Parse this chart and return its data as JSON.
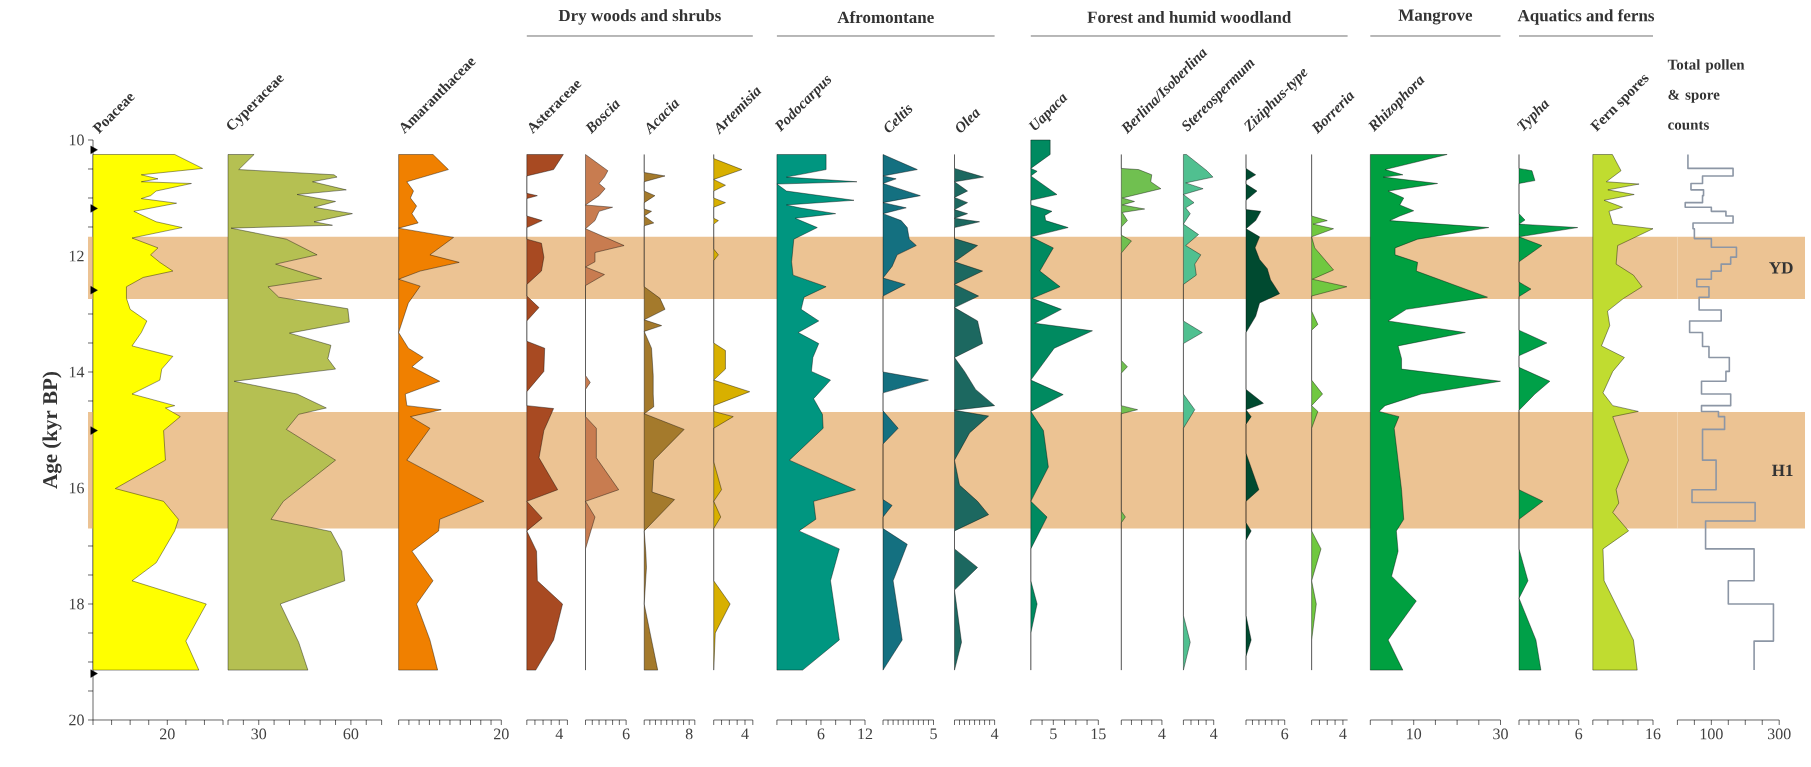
{
  "chart_data": [
    {
      "type": "area",
      "orientation": "horizontal",
      "title": "Poaceae",
      "ylabel": "Age (kyr BP)",
      "ylim": [
        20,
        10
      ],
      "yticks": [
        10,
        {
          "value": 10.5,
          "label": null
        },
        {
          "value": 11,
          "label": null
        },
        {
          "value": 11.5,
          "label": null
        },
        12,
        {
          "value": 12.5,
          "label": null
        },
        {
          "value": 13,
          "label": null
        },
        {
          "value": 13.5,
          "label": null
        },
        14,
        {
          "value": 14.5,
          "label": null
        },
        {
          "value": 15,
          "label": null
        },
        {
          "value": 15.5,
          "label": null
        },
        16,
        {
          "value": 16.5,
          "label": null
        },
        {
          "value": 17,
          "label": null
        },
        {
          "value": 17.5,
          "label": null
        },
        18,
        {
          "value": 18.5,
          "label": null
        },
        {
          "value": 19,
          "label": null
        },
        {
          "value": 19.5,
          "label": null
        },
        20
      ],
      "xlim": [
        0,
        35
      ],
      "xticks": [
        {
          "value": 0,
          "label": null
        },
        {
          "value": 5,
          "label": null
        },
        {
          "value": 10,
          "label": null
        },
        {
          "value": 15,
          "label": null
        },
        20,
        {
          "value": 25,
          "label": null
        },
        {
          "value": 30,
          "label": null
        },
        {
          "value": 35,
          "label": null
        }
      ],
      "series": [
        {
          "type": "area",
          "color": "#ffff00",
          "x": [
            10.25,
            10.49,
            10.6,
            10.67,
            10.72,
            10.75,
            10.88,
            10.96,
            11.01,
            11.09,
            11.23,
            11.41,
            11.51,
            11.69,
            11.86,
            11.98,
            12.11,
            12.26,
            12.37,
            12.53,
            12.73,
            12.92,
            13.12,
            13.32,
            13.55,
            13.73,
            13.95,
            14.14,
            14.38,
            14.58,
            14.62,
            14.77,
            15.01,
            15.52,
            16.01,
            16.23,
            16.54,
            16.74,
            17.29,
            17.6,
            18.0,
            18.64,
            19.14
          ],
          "values": [
            22,
            29.5,
            13,
            17.5,
            13,
            26.5,
            17,
            15.5,
            13,
            22.5,
            11,
            17,
            24,
            10.5,
            17.5,
            15.5,
            18,
            21.5,
            13.5,
            9,
            9,
            10,
            14.5,
            13,
            10.5,
            21.5,
            18.5,
            18,
            10.5,
            22,
            19.5,
            23.5,
            19,
            19.5,
            6,
            19,
            23,
            22,
            17,
            10.5,
            30.5,
            25,
            28.5
          ]
        },
        {
          "type": "scatter",
          "marker": "triangle",
          "color": "#000000",
          "x": [
            10.17,
            11.18,
            12.59,
            15.01,
            19.2
          ],
          "values": [
            0,
            0,
            0,
            0,
            0
          ]
        }
      ],
      "bands": [
        {
          "axis": "y",
          "from": 11.67,
          "to": 12.74,
          "color": "#ecc393"
        },
        {
          "axis": "y",
          "from": 14.69,
          "to": 16.7,
          "color": "#ecc393"
        }
      ]
    },
    {
      "type": "area",
      "orientation": "horizontal",
      "title": "Cyperaceae",
      "color": "#b5c052",
      "ylim": [
        20,
        10
      ],
      "tick_labels": "x",
      "xlim": [
        20,
        70
      ],
      "xticks": [
        {
          "value": 20,
          "label": null
        },
        {
          "value": 25,
          "label": null
        },
        30,
        {
          "value": 35,
          "label": null
        },
        {
          "value": 40,
          "label": null
        },
        {
          "value": 45,
          "label": null
        },
        {
          "value": 50,
          "label": null
        },
        {
          "value": 55,
          "label": null
        },
        60,
        {
          "value": 65,
          "label": null
        },
        {
          "value": 70,
          "label": null
        }
      ],
      "x": [
        10.25,
        10.51,
        10.6,
        10.64,
        10.72,
        10.86,
        10.94,
        11.06,
        11.16,
        11.27,
        11.41,
        11.47,
        11.52,
        11.71,
        11.98,
        12.14,
        12.39,
        12.53,
        12.71,
        12.91,
        13.14,
        13.33,
        13.54,
        13.77,
        13.95,
        14.16,
        14.38,
        14.62,
        14.73,
        14.99,
        15.52,
        16.23,
        16.54,
        16.75,
        17.09,
        17.6,
        18.0,
        18.66,
        19.14
      ],
      "values": [
        28.5,
        23.5,
        54.5,
        55.5,
        47.5,
        58.5,
        42.5,
        55,
        48,
        60.5,
        48,
        54,
        21,
        39,
        49,
        35.5,
        50.5,
        33,
        36.5,
        59,
        59.5,
        40,
        53.5,
        52.5,
        55,
        22,
        42.5,
        52,
        43,
        39,
        55,
        38,
        34,
        53.5,
        57,
        58,
        37,
        43,
        46
      ],
      "bands": [
        {
          "axis": "y",
          "from": 11.67,
          "to": 12.74,
          "color": "#ecc393"
        },
        {
          "axis": "y",
          "from": 14.69,
          "to": 16.7,
          "color": "#ecc393"
        }
      ]
    },
    {
      "type": "area",
      "orientation": "horizontal",
      "title": "Amaranthaceae",
      "color": "#f08000",
      "ylim": [
        20,
        10
      ],
      "tick_labels": "x",
      "xlim": [
        0,
        20
      ],
      "xticks": [
        {
          "value": 0,
          "label": null
        },
        {
          "value": 2,
          "label": null
        },
        {
          "value": 4,
          "label": null
        },
        {
          "value": 6,
          "label": null
        },
        {
          "value": 8,
          "label": null
        },
        {
          "value": 10,
          "label": null
        },
        {
          "value": 12,
          "label": null
        },
        {
          "value": 14,
          "label": null
        },
        {
          "value": 16,
          "label": null
        },
        {
          "value": 18,
          "label": null
        },
        20
      ],
      "x": [
        10.25,
        10.51,
        10.72,
        10.88,
        11.0,
        11.14,
        11.27,
        11.43,
        11.52,
        11.68,
        11.98,
        12.11,
        12.26,
        12.4,
        12.52,
        12.81,
        13.32,
        13.59,
        13.75,
        13.91,
        14.16,
        14.38,
        14.58,
        14.65,
        14.77,
        14.97,
        15.52,
        16.23,
        16.54,
        16.74,
        17.09,
        17.6,
        18.0,
        18.62,
        19.14
      ],
      "values": [
        6.7,
        9.7,
        1.6,
        2.9,
        2.3,
        3.5,
        2.6,
        3.8,
        0,
        10.7,
        6.1,
        11.8,
        4.2,
        0,
        4.2,
        1.9,
        0,
        1.9,
        4.8,
        2.6,
        8,
        1.3,
        1.6,
        8.3,
        2.3,
        6.1,
        1.6,
        16.6,
        8,
        7.8,
        2.6,
        6.7,
        3.5,
        6.1,
        7.6
      ],
      "bands": [
        {
          "axis": "y",
          "from": 11.67,
          "to": 12.74,
          "color": "#ecc393"
        },
        {
          "axis": "y",
          "from": 14.69,
          "to": 16.7,
          "color": "#ecc393"
        }
      ]
    },
    {
      "type": "area",
      "orientation": "horizontal",
      "title": "Asteraceae",
      "color": "#a84a22",
      "ylim": [
        20,
        10
      ],
      "tick_labels": "x",
      "xlim": [
        0,
        5
      ],
      "annotations": [
        "Dry woods and shrubs"
      ],
      "xticks": [
        {
          "value": 0,
          "label": null
        },
        {
          "value": 1,
          "label": null
        },
        {
          "value": 2,
          "label": null
        },
        {
          "value": 3,
          "label": null
        },
        4,
        {
          "value": 5,
          "label": null
        }
      ],
      "x": [
        10.25,
        10.51,
        10.62,
        10.92,
        10.96,
        11.01,
        11.31,
        11.39,
        11.51,
        11.71,
        11.78,
        12.02,
        12.26,
        12.49,
        12.69,
        12.89,
        13.12,
        13.47,
        13.59,
        13.99,
        14.34,
        14.58,
        14.63,
        15.01,
        15.48,
        16.03,
        16.23,
        16.52,
        16.74,
        17.09,
        17.6,
        18.0,
        18.62,
        19.14
      ],
      "values": [
        4.5,
        3.3,
        0,
        0,
        1.3,
        0,
        0,
        1.9,
        0,
        0,
        1.8,
        2.1,
        1.8,
        0,
        0,
        1.5,
        0,
        0,
        2.2,
        2.1,
        0,
        0,
        3.3,
        2.1,
        1.5,
        3.8,
        0,
        1.9,
        0,
        1.2,
        1.3,
        4.4,
        3.3,
        1.1
      ],
      "bands": [
        {
          "axis": "y",
          "from": 11.67,
          "to": 12.74,
          "color": "#ecc393"
        },
        {
          "axis": "y",
          "from": 14.69,
          "to": 16.7,
          "color": "#ecc393"
        }
      ]
    },
    {
      "type": "area",
      "orientation": "horizontal",
      "title": "Boscia",
      "color": "#c87c50",
      "ylim": [
        20,
        10
      ],
      "tick_labels": "x",
      "xlim": [
        0,
        6
      ],
      "xticks": [
        {
          "value": 0,
          "label": null
        },
        {
          "value": 1,
          "label": null
        },
        {
          "value": 2,
          "label": null
        },
        {
          "value": 3,
          "label": null
        },
        {
          "value": 4,
          "label": null
        },
        {
          "value": 5,
          "label": null
        },
        6
      ],
      "x": [
        10.25,
        10.53,
        10.64,
        10.75,
        10.84,
        10.96,
        11.12,
        11.16,
        11.23,
        11.39,
        11.53,
        11.82,
        11.94,
        12.1,
        12.19,
        12.32,
        12.51,
        14.06,
        14.18,
        14.3,
        14.77,
        14.97,
        15.48,
        16.03,
        16.23,
        16.5,
        17.05,
        19.14
      ],
      "values": [
        0,
        3.3,
        2.8,
        2,
        2.9,
        2,
        0,
        4,
        2,
        1.4,
        0,
        5.7,
        1.4,
        1.4,
        0,
        2.8,
        0,
        0,
        0.7,
        0,
        0,
        1.6,
        1.6,
        4.9,
        0,
        1.4,
        0,
        0
      ],
      "bands": [
        {
          "axis": "y",
          "from": 11.67,
          "to": 12.74,
          "color": "#ecc393"
        },
        {
          "axis": "y",
          "from": 14.69,
          "to": 16.7,
          "color": "#ecc393"
        }
      ]
    },
    {
      "type": "area",
      "orientation": "horizontal",
      "title": "Acacia",
      "color": "#a47a2c",
      "ylim": [
        20,
        10
      ],
      "tick_labels": "x",
      "xlim": [
        0,
        9
      ],
      "xticks": [
        {
          "value": 0,
          "label": null
        },
        {
          "value": 1,
          "label": null
        },
        {
          "value": 2,
          "label": null
        },
        {
          "value": 3,
          "label": null
        },
        {
          "value": 4,
          "label": null
        },
        {
          "value": 5,
          "label": null
        },
        {
          "value": 6,
          "label": null
        },
        {
          "value": 7,
          "label": null
        },
        8,
        {
          "value": 9,
          "label": null
        }
      ],
      "x": [
        10.25,
        10.56,
        10.62,
        10.72,
        10.88,
        10.96,
        11.08,
        11.19,
        11.23,
        11.31,
        11.43,
        11.48,
        12.53,
        12.73,
        12.92,
        13.1,
        13.2,
        13.3,
        13.59,
        14.06,
        14.38,
        14.6,
        14.72,
        14.99,
        15.52,
        16.07,
        16.2,
        16.74,
        17.13,
        17.37,
        18.0,
        18.62,
        19.14
      ],
      "values": [
        0,
        0,
        3.7,
        0,
        0,
        1.9,
        0,
        0,
        1.3,
        0,
        1.7,
        0,
        0,
        2.8,
        3.7,
        0,
        3.1,
        0,
        1.3,
        1.6,
        1.6,
        1.7,
        0,
        7.1,
        1.7,
        1.4,
        5.4,
        0,
        0.3,
        0.4,
        0,
        1.3,
        2.4
      ],
      "bands": [
        {
          "axis": "y",
          "from": 11.67,
          "to": 12.74,
          "color": "#ecc393"
        },
        {
          "axis": "y",
          "from": 14.69,
          "to": 16.7,
          "color": "#ecc393"
        }
      ]
    },
    {
      "type": "area",
      "orientation": "horizontal",
      "title": "Artemisia",
      "color": "#d8b000",
      "ylim": [
        20,
        10
      ],
      "tick_labels": "x",
      "xlim": [
        0,
        5
      ],
      "xticks": [
        {
          "value": 0,
          "label": null
        },
        {
          "value": 1,
          "label": null
        },
        {
          "value": 2,
          "label": null
        },
        {
          "value": 3,
          "label": null
        },
        4,
        {
          "value": 5,
          "label": null
        }
      ],
      "x": [
        10.25,
        10.32,
        10.51,
        10.68,
        10.78,
        10.88,
        11.0,
        11.08,
        11.16,
        11.35,
        11.39,
        11.45,
        11.88,
        11.98,
        12.08,
        13.5,
        13.63,
        13.95,
        14.14,
        14.34,
        14.58,
        14.68,
        14.77,
        14.97,
        15.55,
        16.03,
        16.23,
        16.5,
        16.7,
        17.6,
        18.0,
        18.5,
        19.14
      ],
      "values": [
        0,
        0,
        3.6,
        0,
        1.5,
        0,
        0,
        1.5,
        0,
        0,
        0.6,
        0,
        0,
        0.6,
        0,
        0,
        1.5,
        1.5,
        0,
        4.6,
        0,
        0,
        2.5,
        0,
        0,
        1,
        0,
        0.9,
        0,
        0,
        2.1,
        0.2,
        0
      ],
      "bands": [
        {
          "axis": "y",
          "from": 11.67,
          "to": 12.74,
          "color": "#ecc393"
        },
        {
          "axis": "y",
          "from": 14.69,
          "to": 16.7,
          "color": "#ecc393"
        }
      ]
    },
    {
      "type": "area",
      "orientation": "horizontal",
      "title": "Podocarpus",
      "color": "#009680",
      "ylim": [
        20,
        10
      ],
      "tick_labels": "x",
      "xlim": [
        0,
        12
      ],
      "annotations": [
        "Afromontane"
      ],
      "xticks": [
        {
          "value": 0,
          "label": null
        },
        {
          "value": 2,
          "label": null
        },
        {
          "value": 4,
          "label": null
        },
        6,
        {
          "value": 8,
          "label": null
        },
        {
          "value": 10,
          "label": null
        },
        12
      ],
      "x": [
        10.25,
        10.51,
        10.64,
        10.72,
        10.76,
        10.88,
        11.04,
        11.12,
        11.17,
        11.27,
        11.35,
        11.51,
        11.71,
        12.1,
        12.33,
        12.53,
        12.71,
        12.92,
        13.12,
        13.32,
        13.51,
        13.75,
        13.99,
        14.14,
        14.46,
        14.73,
        14.97,
        15.52,
        16.03,
        16.23,
        16.54,
        16.74,
        17.05,
        17.6,
        18.62,
        19.14
      ],
      "values": [
        6.7,
        6.7,
        1.3,
        10.9,
        0,
        1.3,
        10.5,
        1.3,
        3.1,
        8,
        2.5,
        5.5,
        2.3,
        2,
        2.2,
        6.7,
        3.7,
        3.3,
        5.7,
        2.9,
        5.7,
        4.9,
        4.7,
        7.3,
        5,
        6.2,
        6.3,
        1.7,
        10.7,
        5,
        5.3,
        3,
        8.5,
        7.3,
        8.5,
        3.5
      ],
      "bands": [
        {
          "axis": "y",
          "from": 11.67,
          "to": 12.74,
          "color": "#ecc393"
        },
        {
          "axis": "y",
          "from": 14.69,
          "to": 16.7,
          "color": "#ecc393"
        }
      ]
    },
    {
      "type": "area",
      "orientation": "horizontal",
      "title": "Celtis",
      "color": "#147080",
      "ylim": [
        20,
        10
      ],
      "tick_labels": "x",
      "xlim": [
        0,
        5
      ],
      "xticks": [
        {
          "value": 0,
          "label": null
        },
        {
          "value": 0.5,
          "label": null
        },
        {
          "value": 1,
          "label": null
        },
        {
          "value": 1.5,
          "label": null
        },
        {
          "value": 2,
          "label": null
        },
        {
          "value": 2.5,
          "label": null
        },
        {
          "value": 3,
          "label": null
        },
        {
          "value": 3.5,
          "label": null
        },
        {
          "value": 4,
          "label": null
        },
        {
          "value": 4.5,
          "label": null
        },
        5
      ],
      "x": [
        10.25,
        10.51,
        10.62,
        10.67,
        10.75,
        10.96,
        11.08,
        11.17,
        11.27,
        11.39,
        11.51,
        11.71,
        11.82,
        11.98,
        12.18,
        12.38,
        12.49,
        12.69,
        14.0,
        14.14,
        14.36,
        14.67,
        14.97,
        15.24,
        16.2,
        16.3,
        16.5,
        16.7,
        16.97,
        17.6,
        18.62,
        19.14
      ],
      "values": [
        0,
        3.4,
        0,
        1.3,
        0,
        3.7,
        0,
        2.3,
        0,
        1.8,
        2.4,
        2.6,
        3.3,
        1.4,
        0.9,
        0,
        2.2,
        0,
        0,
        4.5,
        0,
        0,
        1.5,
        0,
        0,
        0.9,
        0,
        0,
        2.4,
        1,
        1.9,
        0
      ],
      "bands": [
        {
          "axis": "y",
          "from": 11.67,
          "to": 12.74,
          "color": "#ecc393"
        },
        {
          "axis": "y",
          "from": 14.69,
          "to": 16.7,
          "color": "#ecc393"
        }
      ]
    },
    {
      "type": "area",
      "orientation": "horizontal",
      "title": "Olea",
      "color": "#1c6860",
      "ylim": [
        20,
        10
      ],
      "tick_labels": "x",
      "xlim": [
        0,
        4
      ],
      "xticks": [
        {
          "value": 0,
          "label": null
        },
        {
          "value": 0.5,
          "label": null
        },
        {
          "value": 1,
          "label": null
        },
        {
          "value": 1.5,
          "label": null
        },
        {
          "value": 2,
          "label": null
        },
        {
          "value": 2.5,
          "label": null
        },
        {
          "value": 3,
          "label": null
        },
        {
          "value": 3.5,
          "label": null
        },
        4
      ],
      "x": [
        10.25,
        10.49,
        10.64,
        10.72,
        10.88,
        10.99,
        11.08,
        11.2,
        11.27,
        11.35,
        11.41,
        11.51,
        11.7,
        11.82,
        12.1,
        12.26,
        12.49,
        12.69,
        12.89,
        13.12,
        13.51,
        13.75,
        13.99,
        14.3,
        14.58,
        14.66,
        14.76,
        15.05,
        15.52,
        15.95,
        16.23,
        16.46,
        16.74,
        17.05,
        17.37,
        17.76,
        18.66,
        19.14
      ],
      "values": [
        0,
        0,
        2.9,
        0,
        1.3,
        0,
        1.3,
        0,
        1.3,
        0,
        2.5,
        0,
        0,
        2.3,
        0,
        2.8,
        0,
        2.4,
        0,
        2.3,
        2.8,
        0,
        1,
        2.1,
        4,
        0,
        3.4,
        1.5,
        0,
        0.5,
        2.3,
        3.4,
        0,
        0,
        2.3,
        0,
        0.7,
        0
      ],
      "bands": [
        {
          "axis": "y",
          "from": 11.67,
          "to": 12.74,
          "color": "#ecc393"
        },
        {
          "axis": "y",
          "from": 14.69,
          "to": 16.7,
          "color": "#ecc393"
        }
      ]
    },
    {
      "type": "area",
      "orientation": "horizontal",
      "title": "Uapaca",
      "color": "#008a60",
      "ylim": [
        20,
        10
      ],
      "tick_labels": "x",
      "xlim": [
        0,
        15
      ],
      "annotations": [
        "Forest and humid woodland"
      ],
      "xticks": [
        {
          "value": 0,
          "label": null
        },
        {
          "value": 2.5,
          "label": null
        },
        5,
        {
          "value": 7.5,
          "label": null
        },
        {
          "value": 10,
          "label": null
        },
        {
          "value": 12.5,
          "label": null
        },
        15
      ],
      "x": [
        10.0,
        10.25,
        10.49,
        10.54,
        10.62,
        10.94,
        11.04,
        11.12,
        11.23,
        11.3,
        11.39,
        11.51,
        11.67,
        11.86,
        12.26,
        12.53,
        12.73,
        12.92,
        13.16,
        13.29,
        13.59,
        14.14,
        14.39,
        14.68,
        15.01,
        15.64,
        16.23,
        16.5,
        17.05,
        17.6,
        18.0,
        18.5,
        19.14
      ],
      "values": [
        4.3,
        4.3,
        0,
        1.4,
        0,
        5.8,
        0,
        0,
        4.7,
        3.1,
        3.3,
        8.3,
        0,
        5,
        2,
        6.5,
        0.3,
        6.8,
        0.9,
        13.7,
        5.2,
        0,
        7.2,
        0,
        2.8,
        3.9,
        0,
        3.6,
        0,
        0,
        1.4,
        0,
        0
      ],
      "bands": [
        {
          "axis": "y",
          "from": 11.67,
          "to": 12.74,
          "color": "#ecc393"
        },
        {
          "axis": "y",
          "from": 14.69,
          "to": 16.7,
          "color": "#ecc393"
        }
      ]
    },
    {
      "type": "area",
      "orientation": "horizontal",
      "title": "Berlina/Isoberlina",
      "color": "#70c050",
      "ylim": [
        20,
        10
      ],
      "tick_labels": "x",
      "xlim": [
        0,
        4
      ],
      "xticks": [
        {
          "value": 0,
          "label": null
        },
        {
          "value": 1,
          "label": null
        },
        {
          "value": 2,
          "label": null
        },
        {
          "value": 3,
          "label": null
        },
        4
      ],
      "x": [
        10.25,
        10.49,
        10.51,
        10.6,
        10.72,
        10.84,
        11.0,
        11.06,
        11.12,
        11.19,
        11.25,
        11.39,
        11.5,
        11.64,
        11.74,
        11.95,
        13.8,
        13.91,
        14.02,
        14.58,
        14.65,
        14.72,
        16.4,
        16.5,
        16.6,
        19.14
      ],
      "values": [
        0,
        0,
        1.7,
        3,
        2.9,
        3.9,
        0.1,
        1.3,
        0.1,
        2.3,
        0.1,
        0.6,
        0,
        0,
        1,
        0,
        0,
        0.6,
        0,
        0,
        1.6,
        0,
        0,
        0.4,
        0,
        0
      ],
      "bands": [
        {
          "axis": "y",
          "from": 11.67,
          "to": 12.74,
          "color": "#ecc393"
        },
        {
          "axis": "y",
          "from": 14.69,
          "to": 16.7,
          "color": "#ecc393"
        }
      ]
    },
    {
      "type": "area",
      "orientation": "horizontal",
      "title": "Stereospermum",
      "color": "#50c090",
      "ylim": [
        20,
        10
      ],
      "tick_labels": "x",
      "xlim": [
        0,
        4
      ],
      "xticks": [
        {
          "value": 0,
          "label": null
        },
        {
          "value": 1,
          "label": null
        },
        {
          "value": 2,
          "label": null
        },
        {
          "value": 3,
          "label": null
        },
        4
      ],
      "x": [
        10.25,
        10.53,
        10.64,
        10.74,
        10.84,
        10.94,
        11.08,
        11.17,
        11.27,
        11.45,
        11.63,
        11.82,
        11.98,
        12.14,
        12.33,
        12.49,
        13.12,
        13.32,
        13.51,
        14.38,
        14.65,
        14.97,
        18.2,
        18.66,
        19.14
      ],
      "values": [
        0.4,
        3.1,
        3.9,
        0.3,
        2.6,
        0,
        1.4,
        0.3,
        0.9,
        0,
        2,
        0.3,
        2.3,
        1.5,
        1.7,
        0,
        0,
        2.5,
        0,
        0,
        1.5,
        0,
        0,
        0.9,
        0
      ],
      "bands": [
        {
          "axis": "y",
          "from": 11.67,
          "to": 12.74,
          "color": "#ecc393"
        },
        {
          "axis": "y",
          "from": 14.69,
          "to": 16.7,
          "color": "#ecc393"
        }
      ]
    },
    {
      "type": "area",
      "orientation": "horizontal",
      "title": "Ziziphus-type",
      "color": "#004a30",
      "ylim": [
        20,
        10
      ],
      "tick_labels": "x",
      "xlim": [
        0,
        6
      ],
      "xticks": [
        {
          "value": 0,
          "label": null
        },
        {
          "value": 1,
          "label": null
        },
        {
          "value": 2,
          "label": null
        },
        {
          "value": 3,
          "label": null
        },
        {
          "value": 4,
          "label": null
        },
        {
          "value": 5,
          "label": null
        },
        6
      ],
      "x": [
        10.25,
        10.49,
        10.6,
        10.7,
        10.76,
        10.88,
        11.04,
        11.2,
        11.23,
        11.39,
        11.53,
        11.67,
        11.86,
        12.06,
        12.22,
        12.41,
        12.65,
        12.81,
        13.04,
        13.32,
        14.3,
        14.54,
        14.65,
        14.77,
        14.9,
        15.4,
        16.03,
        16.23,
        16.6,
        16.74,
        16.9,
        18.2,
        18.62,
        18.9,
        19.14
      ],
      "values": [
        0,
        0,
        1.5,
        0,
        0,
        1.7,
        0,
        0,
        2.3,
        1.5,
        0,
        2.1,
        1.4,
        2.1,
        3.3,
        3.8,
        5.2,
        2.1,
        1.5,
        0,
        0,
        2.7,
        0,
        0.8,
        0,
        0,
        2,
        0,
        0,
        0.8,
        0,
        0,
        0.8,
        0,
        0
      ],
      "bands": [
        {
          "axis": "y",
          "from": 11.67,
          "to": 12.74,
          "color": "#ecc393"
        },
        {
          "axis": "y",
          "from": 14.69,
          "to": 16.7,
          "color": "#ecc393"
        }
      ]
    },
    {
      "type": "area",
      "orientation": "horizontal",
      "title": "Borreria",
      "color": "#70c840",
      "ylim": [
        20,
        10
      ],
      "tick_labels": "x",
      "xlim": [
        0,
        4.6
      ],
      "xticks": [
        {
          "value": 0,
          "label": null
        },
        {
          "value": 1,
          "label": null
        },
        {
          "value": 2,
          "label": null
        },
        {
          "value": 3,
          "label": null
        },
        4
      ],
      "x": [
        10.25,
        11.31,
        11.39,
        11.45,
        11.53,
        11.67,
        11.86,
        12.24,
        12.4,
        12.53,
        12.69,
        12.95,
        13.18,
        13.28,
        14.14,
        14.38,
        14.58,
        14.68,
        14.97,
        16.74,
        17.05,
        17.6,
        18.0,
        18.62,
        19.14
      ],
      "values": [
        0,
        0,
        2,
        0.2,
        2.8,
        0,
        0.4,
        2.8,
        0.1,
        4.5,
        0,
        0,
        0.8,
        0,
        0,
        1.4,
        0,
        0.8,
        0,
        0,
        1.2,
        0,
        0.6,
        0,
        0
      ],
      "bands": [
        {
          "axis": "y",
          "from": 11.67,
          "to": 12.74,
          "color": "#ecc393"
        },
        {
          "axis": "y",
          "from": 14.69,
          "to": 16.7,
          "color": "#ecc393"
        }
      ]
    },
    {
      "type": "area",
      "orientation": "horizontal",
      "title": "Rhizophora",
      "color": "#00a040",
      "ylim": [
        20,
        10
      ],
      "tick_labels": "x",
      "xlim": [
        0,
        30
      ],
      "annotations": [
        "Mangrove"
      ],
      "xticks": [
        {
          "value": 0,
          "label": null
        },
        {
          "value": 5,
          "label": null
        },
        10,
        {
          "value": 15,
          "label": null
        },
        {
          "value": 20,
          "label": null
        },
        {
          "value": 25,
          "label": null
        },
        30
      ],
      "x": [
        10.25,
        10.51,
        10.6,
        10.64,
        10.75,
        10.88,
        11.0,
        11.12,
        11.22,
        11.31,
        11.39,
        11.51,
        11.71,
        11.86,
        11.98,
        12.11,
        12.26,
        12.71,
        12.92,
        13.12,
        13.32,
        13.55,
        13.77,
        13.95,
        14.16,
        14.38,
        14.58,
        14.68,
        14.77,
        14.97,
        16.03,
        16.54,
        16.74,
        17.09,
        17.52,
        17.95,
        18.62,
        19.14
      ],
      "values": [
        17.7,
        3.4,
        7.5,
        3,
        15.5,
        4.1,
        7.7,
        6.8,
        10,
        6.8,
        4.5,
        27.3,
        10.9,
        5.7,
        5.7,
        10.9,
        10.6,
        27,
        8.3,
        4.1,
        21.9,
        6.4,
        7.2,
        7.2,
        30,
        11.7,
        3.4,
        2,
        6.6,
        5.5,
        7.2,
        7.7,
        6,
        6.4,
        4.9,
        10.6,
        4.1,
        7.5
      ],
      "bands": [
        {
          "axis": "y",
          "from": 11.67,
          "to": 12.74,
          "color": "#ecc393"
        },
        {
          "axis": "y",
          "from": 14.69,
          "to": 16.7,
          "color": "#ecc393"
        }
      ]
    },
    {
      "type": "area",
      "orientation": "horizontal",
      "title": "Typha",
      "color": "#00a048",
      "ylim": [
        20,
        10
      ],
      "tick_labels": "x",
      "xlim": [
        0,
        6
      ],
      "annotations": [
        "Aquatics and ferns"
      ],
      "xticks": [
        {
          "value": 0,
          "label": null
        },
        {
          "value": 1,
          "label": null
        },
        {
          "value": 2,
          "label": null
        },
        {
          "value": 3,
          "label": null
        },
        {
          "value": 4,
          "label": null
        },
        {
          "value": 5,
          "label": null
        },
        6
      ],
      "x": [
        10.25,
        10.49,
        10.53,
        10.7,
        10.75,
        11.27,
        11.38,
        11.45,
        11.51,
        11.67,
        11.82,
        12.1,
        12.45,
        12.57,
        12.7,
        13.28,
        13.5,
        13.72,
        13.92,
        14.16,
        14.38,
        14.66,
        16.03,
        16.23,
        16.54,
        17.05,
        17.6,
        17.9,
        18.62,
        19.14
      ],
      "values": [
        0,
        0,
        1.3,
        1.6,
        0,
        0,
        0.6,
        0,
        5.9,
        0,
        2.3,
        0,
        0,
        1.2,
        0,
        0,
        2.8,
        0,
        0,
        3.1,
        1.6,
        0,
        0,
        2.4,
        0,
        0,
        0.9,
        0,
        1.7,
        2.2
      ],
      "bands": [
        {
          "axis": "y",
          "from": 11.67,
          "to": 12.74,
          "color": "#ecc393"
        },
        {
          "axis": "y",
          "from": 14.69,
          "to": 16.7,
          "color": "#ecc393"
        }
      ]
    },
    {
      "type": "area",
      "orientation": "horizontal",
      "title": "Fern spores",
      "color": "#c0dc30",
      "ylim": [
        20,
        10
      ],
      "tick_labels": "x",
      "xlim": [
        0,
        16
      ],
      "xticks": [
        {
          "value": 0,
          "label": null
        },
        {
          "value": 4,
          "label": null
        },
        {
          "value": 8,
          "label": null
        },
        {
          "value": 12,
          "label": null
        },
        16
      ],
      "x": [
        10.25,
        10.53,
        10.72,
        10.76,
        10.86,
        10.94,
        11.04,
        11.16,
        11.23,
        11.45,
        11.53,
        11.82,
        12.14,
        12.33,
        12.53,
        12.73,
        12.95,
        13.2,
        13.55,
        13.75,
        13.99,
        14.36,
        14.58,
        14.68,
        14.77,
        15.52,
        16.03,
        16.26,
        16.42,
        16.74,
        17.05,
        17.6,
        18.62,
        19.14
      ],
      "values": [
        5.2,
        7.5,
        3.6,
        12.3,
        4,
        11,
        3,
        7.9,
        4.3,
        5.3,
        16,
        6.6,
        6.2,
        10.8,
        13.1,
        8.2,
        3.9,
        4.5,
        2.3,
        8.4,
        5.3,
        2.7,
        5.3,
        12.1,
        5.3,
        9.5,
        6.2,
        6.9,
        5.3,
        9.5,
        2.7,
        3,
        10.8,
        11.8
      ],
      "bands": [
        {
          "axis": "y",
          "from": 11.67,
          "to": 12.74,
          "color": "#ecc393"
        },
        {
          "axis": "y",
          "from": 14.69,
          "to": 16.7,
          "color": "#ecc393"
        }
      ]
    },
    {
      "type": "step",
      "orientation": "horizontal",
      "title": "Total pollen & spore counts",
      "color": "#8c96a5",
      "ylim": [
        20,
        10
      ],
      "tick_labels": "x",
      "xlim": [
        0,
        300
      ],
      "xticks": [
        {
          "value": 0,
          "label": null
        },
        {
          "value": 50,
          "label": null
        },
        100,
        {
          "value": 150,
          "label": null
        },
        {
          "value": 200,
          "label": null
        },
        {
          "value": 250,
          "label": null
        },
        300
      ],
      "x": [
        10.25,
        10.49,
        10.62,
        10.75,
        10.86,
        10.96,
        11.08,
        11.16,
        11.23,
        11.31,
        11.43,
        11.53,
        11.7,
        11.85,
        12.02,
        12.14,
        12.26,
        12.4,
        12.53,
        12.71,
        12.93,
        13.12,
        13.32,
        13.56,
        13.75,
        13.99,
        14.16,
        14.38,
        14.58,
        14.68,
        14.77,
        14.99,
        15.52,
        16.03,
        16.25,
        16.57,
        17.05,
        17.6,
        18.0,
        18.64,
        19.14
      ],
      "values": [
        31,
        164,
        74,
        40,
        77,
        74,
        23,
        100,
        143,
        164,
        46,
        50,
        100,
        174,
        157,
        129,
        100,
        57,
        93,
        64,
        129,
        36,
        74,
        93,
        153,
        143,
        71,
        157,
        71,
        121,
        139,
        74,
        114,
        43,
        229,
        83,
        226,
        150,
        283,
        226,
        226
      ],
      "bands": [
        {
          "axis": "y",
          "from": 11.67,
          "to": 12.74,
          "color": "#ecc393",
          "label": "YD"
        },
        {
          "axis": "y",
          "from": 14.69,
          "to": 16.7,
          "color": "#ecc393",
          "label": "H1"
        }
      ]
    }
  ]
}
